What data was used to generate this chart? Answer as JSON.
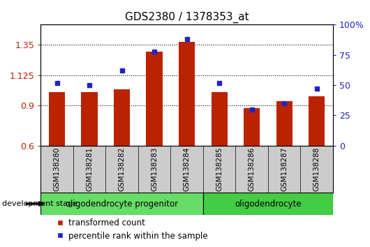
{
  "title": "GDS2380 / 1378353_at",
  "samples": [
    "GSM138280",
    "GSM138281",
    "GSM138282",
    "GSM138283",
    "GSM138284",
    "GSM138285",
    "GSM138286",
    "GSM138287",
    "GSM138288"
  ],
  "bar_values": [
    1.0,
    1.0,
    1.02,
    1.3,
    1.37,
    1.0,
    0.88,
    0.93,
    0.97
  ],
  "dot_values": [
    52,
    50,
    62,
    78,
    88,
    52,
    30,
    35,
    47
  ],
  "bar_color": "#bb2200",
  "dot_color": "#2222cc",
  "ylim_left": [
    0.6,
    1.5
  ],
  "ylim_right": [
    0,
    100
  ],
  "yticks_left": [
    0.6,
    0.9,
    1.125,
    1.35
  ],
  "yticks_right": [
    0,
    25,
    50,
    75,
    100
  ],
  "ytick_labels_left": [
    "0.6",
    "0.9",
    "1.125",
    "1.35"
  ],
  "ytick_labels_right": [
    "0",
    "25",
    "50",
    "75",
    "100%"
  ],
  "hlines": [
    0.9,
    1.125,
    1.35
  ],
  "groups": [
    {
      "label": "oligodendrocyte progenitor",
      "start": 0,
      "end": 5,
      "color": "#66dd66"
    },
    {
      "label": "oligodendrocyte",
      "start": 5,
      "end": 9,
      "color": "#44cc44"
    }
  ],
  "legend_bar": "transformed count",
  "legend_dot": "percentile rank within the sample",
  "bar_width": 0.5,
  "tick_area_bg": "#cccccc",
  "plot_bg": "#ffffff",
  "fig_bg": "#ffffff"
}
